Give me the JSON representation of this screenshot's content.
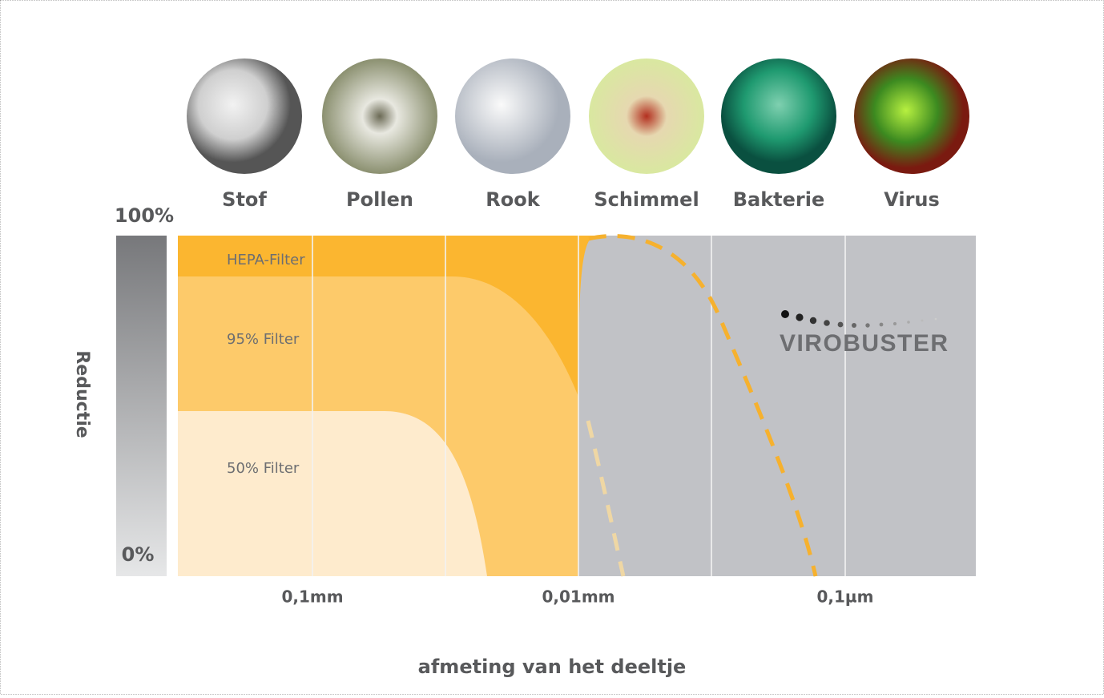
{
  "categories": [
    "Stof",
    "Pollen",
    "Rook",
    "Schimmel",
    "Bakterie",
    "Virus"
  ],
  "y_axis": {
    "title": "Reductie",
    "top": "100%",
    "bottom": "0%"
  },
  "x_axis": {
    "title": "afmeting van het deeltje",
    "labels": [
      "0,1mm",
      "0,01mm",
      "0,1µm"
    ]
  },
  "filters": [
    "HEPA-Filter",
    "95% Filter",
    "50% Filter"
  ],
  "logo": "VIROBUSTER"
}
